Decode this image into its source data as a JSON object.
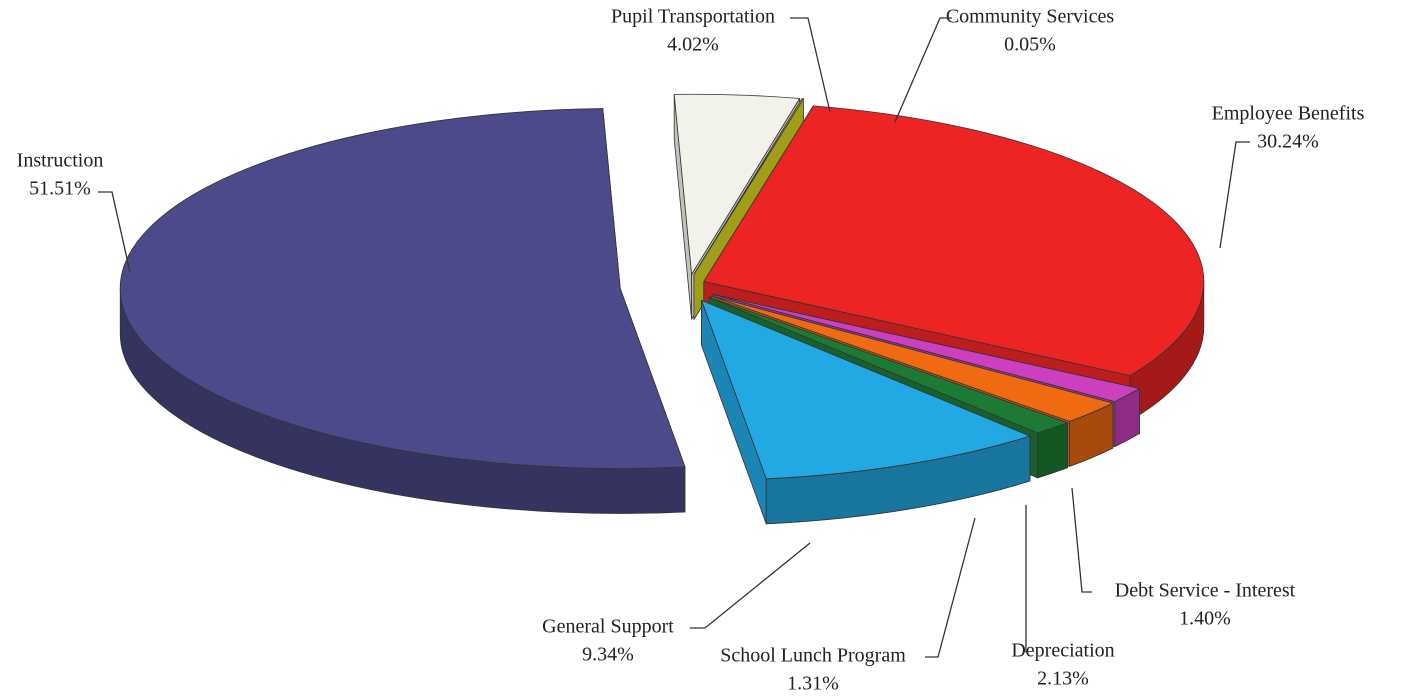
{
  "chart_data": {
    "type": "pie",
    "categories": [
      "Pupil Transportation",
      "Community Services",
      "Employee Benefits",
      "Debt Service - Interest",
      "Depreciation",
      "School Lunch Program",
      "General Support",
      "Instruction"
    ],
    "values": [
      4.02,
      0.05,
      30.24,
      1.4,
      2.13,
      1.31,
      9.34,
      51.51
    ],
    "value_labels": [
      "4.02%",
      "0.05%",
      "30.24%",
      "1.40%",
      "2.13%",
      "1.31%",
      "9.34%",
      "51.51%"
    ],
    "colors": [
      "#f2f2ea",
      "#c8c41e",
      "#ec2424",
      "#cc40c0",
      "#f06a12",
      "#1c7a34",
      "#22a8e2",
      "#4c4a8a"
    ]
  }
}
